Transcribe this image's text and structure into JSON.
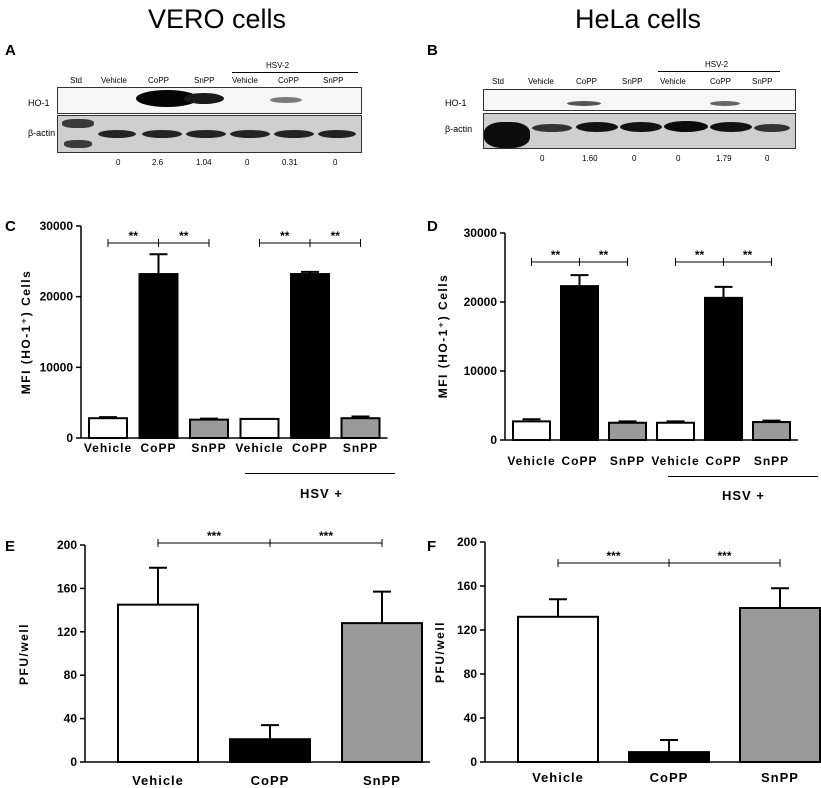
{
  "titles": {
    "left": "VERO cells",
    "right": "HeLa cells"
  },
  "panel_letters": [
    "A",
    "B",
    "C",
    "D",
    "E",
    "F"
  ],
  "blots": [
    {
      "panel": "A",
      "hsv_header": "HSV-2",
      "lanes": [
        "Std",
        "Vehicle",
        "CoPP",
        "SnPP",
        "Vehicle",
        "CoPP",
        "SnPP"
      ],
      "rows": [
        "HO-1",
        "β-actin"
      ],
      "quant": [
        "0",
        "2.6",
        "1.04",
        "0",
        "0.31",
        "0"
      ]
    },
    {
      "panel": "B",
      "hsv_header": "HSV-2",
      "lanes": [
        "Std",
        "Vehicle",
        "CoPP",
        "SnPP",
        "Vehicle",
        "CoPP",
        "SnPP"
      ],
      "rows": [
        "HO-1",
        "β-actin"
      ],
      "quant": [
        "0",
        "1.60",
        "0",
        "0",
        "1.79",
        "0"
      ]
    }
  ],
  "hsv_plus_label": "HSV +",
  "colors": {
    "vehicle": "#ffffff",
    "copp": "#000000",
    "snpp": "#9a9a9a"
  },
  "chart_data": [
    {
      "panel": "C",
      "type": "bar",
      "categories": [
        "Vehicle",
        "CoPP",
        "SnPP",
        "Vehicle",
        "CoPP",
        "SnPP"
      ],
      "values": [
        2800,
        23200,
        2600,
        2700,
        23200,
        2800
      ],
      "errors": [
        150,
        2800,
        150,
        0,
        300,
        250
      ],
      "ylabel": "MFI (HO-1⁺) Cells",
      "ylim": [
        0,
        30000
      ],
      "yticks": [
        "0",
        "10000",
        "20000",
        "30000"
      ],
      "significance": [
        "**",
        "**",
        "**",
        "**"
      ]
    },
    {
      "panel": "D",
      "type": "bar",
      "categories": [
        "Vehicle",
        "CoPP",
        "SnPP",
        "Vehicle",
        "CoPP",
        "SnPP"
      ],
      "values": [
        2700,
        22300,
        2500,
        2500,
        20600,
        2600
      ],
      "errors": [
        300,
        1600,
        200,
        200,
        1600,
        200
      ],
      "ylabel": "MFI (HO-1⁺) Cells",
      "ylim": [
        0,
        30000
      ],
      "yticks": [
        "0",
        "10000",
        "20000",
        "30000"
      ],
      "significance": [
        "**",
        "**",
        "**",
        "**"
      ]
    },
    {
      "panel": "E",
      "type": "bar",
      "categories": [
        "Vehicle",
        "CoPP",
        "SnPP"
      ],
      "values": [
        145,
        21,
        128
      ],
      "errors": [
        34,
        13,
        29
      ],
      "ylabel": "PFU/well",
      "ylim": [
        0,
        200
      ],
      "yticks": [
        "0",
        "40",
        "80",
        "120",
        "160",
        "200"
      ],
      "significance": [
        "***",
        "***"
      ]
    },
    {
      "panel": "F",
      "type": "bar",
      "categories": [
        "Vehicle",
        "CoPP",
        "SnPP"
      ],
      "values": [
        132,
        9,
        140
      ],
      "errors": [
        16,
        11,
        18
      ],
      "ylabel": "PFU/well",
      "ylim": [
        0,
        200
      ],
      "yticks": [
        "0",
        "40",
        "80",
        "120",
        "160",
        "200"
      ],
      "significance": [
        "***",
        "***"
      ]
    }
  ]
}
